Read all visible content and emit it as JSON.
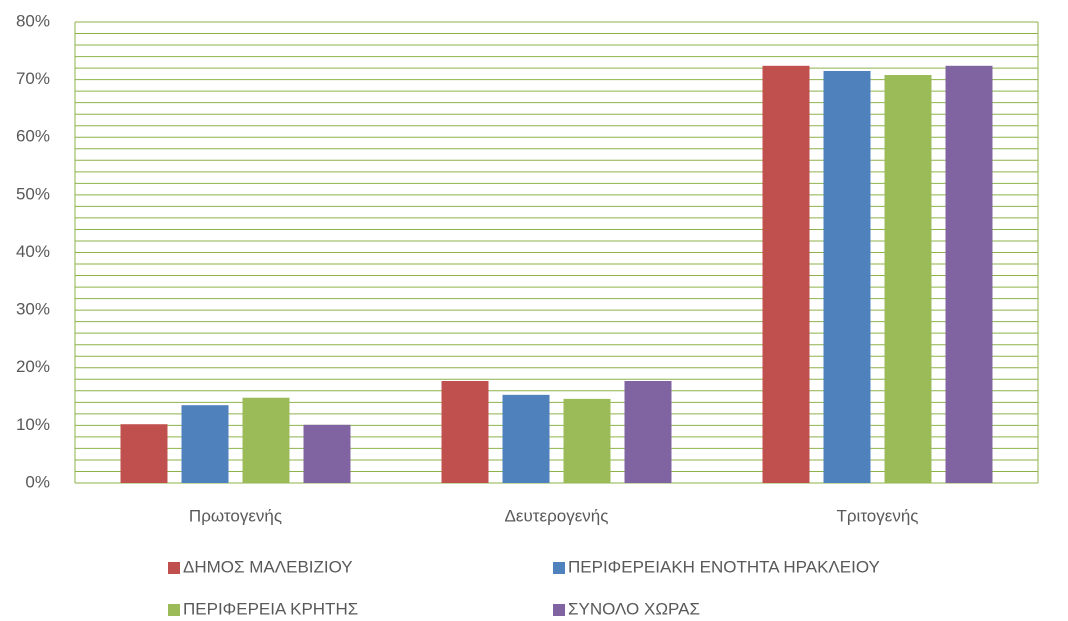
{
  "chart_data": {
    "type": "bar",
    "categories": [
      "Πρωτογενής",
      "Δευτερογενής",
      "Τριτογενής"
    ],
    "series": [
      {
        "name": "ΔΗΜΟΣ ΜΑΛΕΒΙΖΙΟΥ",
        "color": "#c0504d",
        "values": [
          10.2,
          17.7,
          72.4
        ]
      },
      {
        "name": "ΠΕΡΙΦΕΡΕΙΑΚΗ ΕΝΟΤΗΤΑ ΗΡΑΚΛΕΙΟΥ",
        "color": "#4f81bd",
        "values": [
          13.5,
          15.3,
          71.5
        ]
      },
      {
        "name": "ΠΕΡΙΦΕΡΕΙΑ ΚΡΗΤΗΣ",
        "color": "#9bbb59",
        "values": [
          14.8,
          14.6,
          70.8
        ]
      },
      {
        "name": "ΣΥΝΟΛΟ ΧΩΡΑΣ",
        "color": "#8064a2",
        "values": [
          10.1,
          17.7,
          72.4
        ]
      }
    ],
    "ylim": [
      0,
      80
    ],
    "yticks": [
      {
        "value": 0,
        "label": "0%"
      },
      {
        "value": 10,
        "label": "10%"
      },
      {
        "value": 20,
        "label": "20%"
      },
      {
        "value": 30,
        "label": "30%"
      },
      {
        "value": 40,
        "label": "40%"
      },
      {
        "value": 50,
        "label": "50%"
      },
      {
        "value": 60,
        "label": "60%"
      },
      {
        "value": 70,
        "label": "70%"
      },
      {
        "value": 80,
        "label": "80%"
      }
    ],
    "minor_yticks": [
      2,
      4,
      6,
      8,
      12,
      14,
      16,
      18,
      22,
      24,
      26,
      28,
      32,
      34,
      36,
      38,
      42,
      44,
      46,
      48,
      52,
      54,
      56,
      58,
      62,
      64,
      66,
      68,
      72,
      74,
      76,
      78
    ],
    "grid": true,
    "grid_color": "#8db24a",
    "legend": "bottom"
  }
}
